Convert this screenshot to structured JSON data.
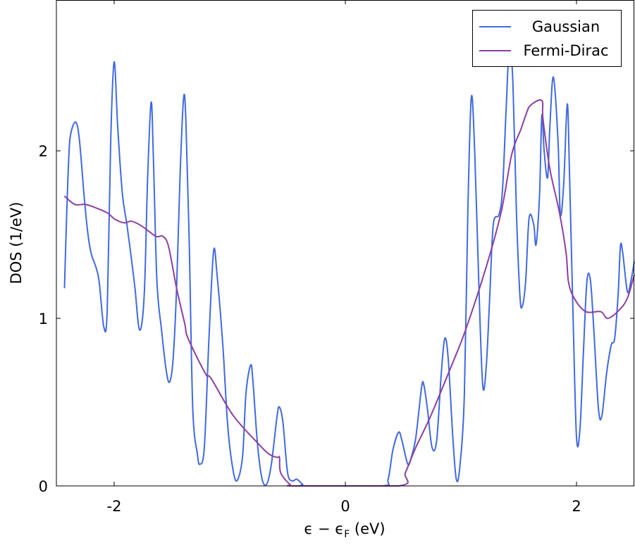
{
  "chart_data": {
    "type": "line",
    "title": "",
    "xlabel": {
      "main": "ϵ − ϵ",
      "sub": "F",
      "unit": " (eV)"
    },
    "ylabel": "DOS (1/eV)",
    "xlim": [
      -2.5,
      2.5
    ],
    "ylim": [
      0,
      2.9
    ],
    "xticks": [
      -2,
      0,
      2
    ],
    "xtick_labels": [
      "-2",
      "0",
      "2"
    ],
    "yticks": [
      0,
      1,
      2
    ],
    "ytick_labels": [
      "0",
      "1",
      "2"
    ],
    "grid": false,
    "legend_position": "top-right",
    "series": [
      {
        "name": "Gaussian",
        "color": "#4169e1",
        "x": [
          -2.43,
          -2.41,
          -2.39,
          -2.37,
          -2.33,
          -2.3,
          -2.26,
          -2.23,
          -2.2,
          -2.16,
          -2.13,
          -2.09,
          -2.06,
          -2.03,
          -2.0,
          -1.97,
          -1.93,
          -1.89,
          -1.85,
          -1.82,
          -1.78,
          -1.74,
          -1.71,
          -1.68,
          -1.66,
          -1.63,
          -1.59,
          -1.55,
          -1.52,
          -1.49,
          -1.46,
          -1.43,
          -1.4,
          -1.38,
          -1.35,
          -1.32,
          -1.28,
          -1.26,
          -1.22,
          -1.18,
          -1.14,
          -1.11,
          -1.06,
          -1.02,
          -0.98,
          -0.94,
          -0.89,
          -0.86,
          -0.82,
          -0.8,
          -0.76,
          -0.72,
          -0.68,
          -0.64,
          -0.59,
          -0.57,
          -0.54,
          -0.5,
          -0.46,
          -0.42,
          -0.37,
          -0.33,
          0.31,
          0.37,
          0.41,
          0.46,
          0.49,
          0.54,
          0.57,
          0.61,
          0.66,
          0.68,
          0.71,
          0.75,
          0.79,
          0.83,
          0.86,
          0.89,
          0.93,
          0.96,
          0.99,
          1.03,
          1.06,
          1.09,
          1.12,
          1.16,
          1.19,
          1.22,
          1.25,
          1.28,
          1.33,
          1.36,
          1.39,
          1.42,
          1.45,
          1.48,
          1.51,
          1.53,
          1.56,
          1.59,
          1.63,
          1.65,
          1.68,
          1.7,
          1.72,
          1.75,
          1.77,
          1.8,
          1.84,
          1.86,
          1.89,
          1.92,
          1.94,
          1.97,
          2.0,
          2.03,
          2.06,
          2.09,
          2.12,
          2.15,
          2.19,
          2.22,
          2.26,
          2.3,
          2.33,
          2.36,
          2.38,
          2.4,
          2.44,
          2.47,
          2.5
        ],
        "y": [
          1.18,
          1.64,
          2.0,
          2.12,
          2.17,
          2.06,
          1.73,
          1.52,
          1.39,
          1.31,
          1.22,
          0.95,
          1.05,
          2.06,
          2.53,
          2.15,
          1.75,
          1.56,
          1.35,
          1.18,
          0.93,
          1.14,
          1.85,
          2.29,
          1.94,
          1.22,
          0.93,
          0.69,
          0.62,
          0.76,
          1.18,
          1.85,
          2.31,
          2.19,
          1.43,
          0.46,
          0.19,
          0.13,
          0.23,
          0.88,
          1.4,
          1.26,
          0.84,
          0.38,
          0.13,
          0.03,
          0.17,
          0.55,
          0.72,
          0.63,
          0.25,
          0.04,
          0.01,
          0.13,
          0.42,
          0.47,
          0.38,
          0.08,
          0.03,
          0.04,
          0.01,
          0,
          0,
          0.04,
          0.21,
          0.32,
          0.27,
          0.13,
          0.17,
          0.29,
          0.59,
          0.6,
          0.46,
          0.23,
          0.27,
          0.67,
          0.88,
          0.76,
          0.29,
          0.04,
          0.11,
          0.55,
          1.64,
          2.32,
          1.98,
          1.09,
          0.59,
          0.72,
          1.14,
          1.56,
          1.62,
          1.77,
          2.23,
          2.63,
          2.4,
          1.64,
          1.14,
          1.07,
          1.22,
          1.6,
          1.56,
          1.44,
          1.73,
          2.21,
          2.0,
          1.84,
          2.15,
          2.44,
          2.06,
          1.62,
          1.81,
          2.28,
          1.85,
          1.02,
          0.29,
          0.34,
          0.8,
          1.22,
          1.23,
          0.93,
          0.46,
          0.42,
          0.67,
          0.84,
          0.88,
          1.14,
          1.43,
          1.39,
          1.16,
          1.22,
          1.34
        ]
      },
      {
        "name": "Fermi-Dirac",
        "color": "#8b3fa3",
        "x": [
          -2.43,
          -2.34,
          -2.25,
          -2.16,
          -2.06,
          -1.99,
          -1.91,
          -1.85,
          -1.76,
          -1.64,
          -1.58,
          -1.53,
          -1.46,
          -1.39,
          -1.36,
          -1.21,
          -1.16,
          -0.97,
          -0.75,
          -0.66,
          -0.59,
          -0.57,
          -0.56,
          -0.48,
          -0.42,
          0.46,
          0.52,
          0.61,
          0.74,
          0.92,
          1.04,
          1.22,
          1.35,
          1.44,
          1.52,
          1.56,
          1.6,
          1.7,
          1.71,
          1.77,
          1.85,
          1.91,
          1.93,
          1.98,
          2.08,
          2.21,
          2.27,
          2.37,
          2.44,
          2.5
        ],
        "y": [
          1.73,
          1.68,
          1.68,
          1.66,
          1.63,
          1.59,
          1.57,
          1.58,
          1.55,
          1.49,
          1.49,
          1.43,
          1.18,
          0.97,
          0.88,
          0.67,
          0.64,
          0.42,
          0.25,
          0.19,
          0.17,
          0.17,
          0.08,
          0.01,
          0,
          0,
          0.08,
          0.23,
          0.42,
          0.72,
          0.93,
          1.31,
          1.64,
          1.98,
          2.13,
          2.21,
          2.27,
          2.3,
          2.19,
          1.89,
          1.64,
          1.39,
          1.22,
          1.12,
          1.04,
          1.04,
          1.0,
          1.05,
          1.12,
          1.26
        ]
      }
    ]
  }
}
